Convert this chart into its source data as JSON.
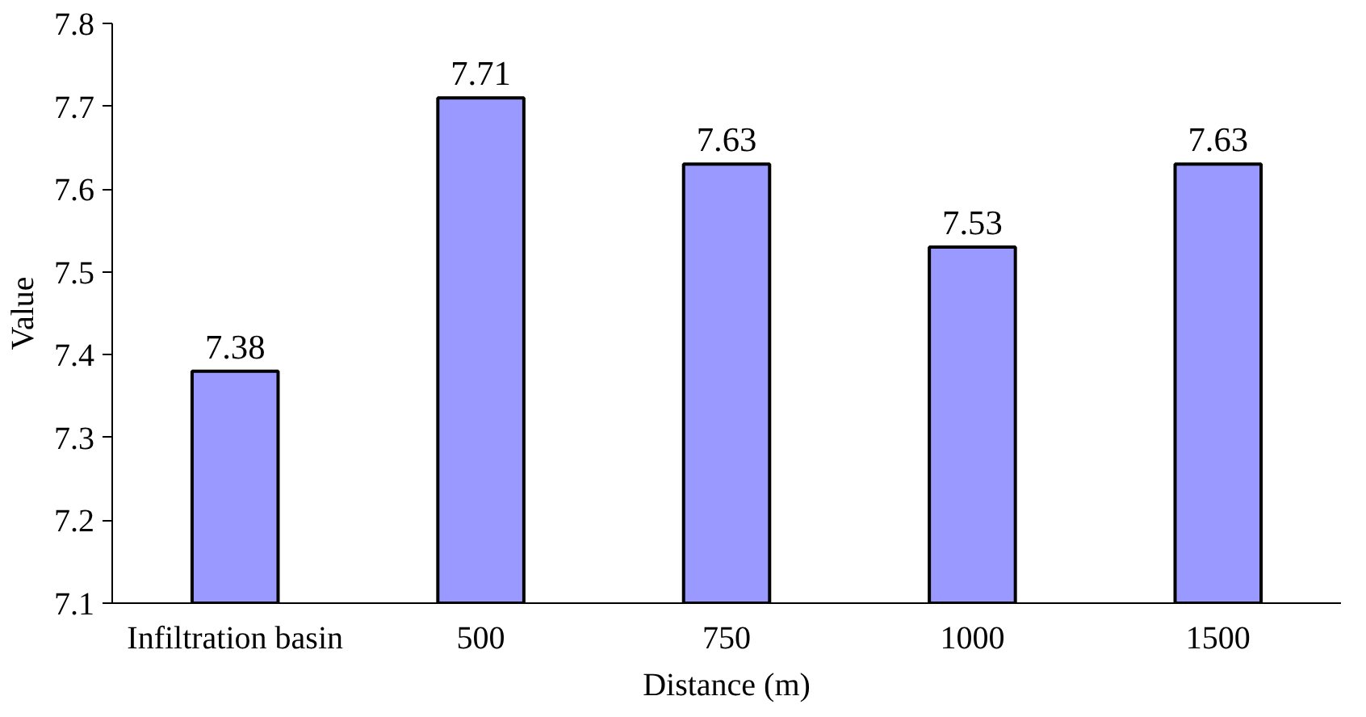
{
  "chart_data": {
    "type": "bar",
    "xlabel": "Distance (m)",
    "ylabel": "Value",
    "categories": [
      "Infiltration basin",
      "500",
      "750",
      "1000",
      "1500"
    ],
    "values": [
      7.38,
      7.71,
      7.63,
      7.53,
      7.63
    ],
    "color": "#9999ff",
    "ylim": [
      7.1,
      7.8
    ],
    "yticks": [
      7.1,
      7.2,
      7.3,
      7.4,
      7.5,
      7.6,
      7.7,
      7.8
    ],
    "data_labels": true,
    "grid": false
  }
}
